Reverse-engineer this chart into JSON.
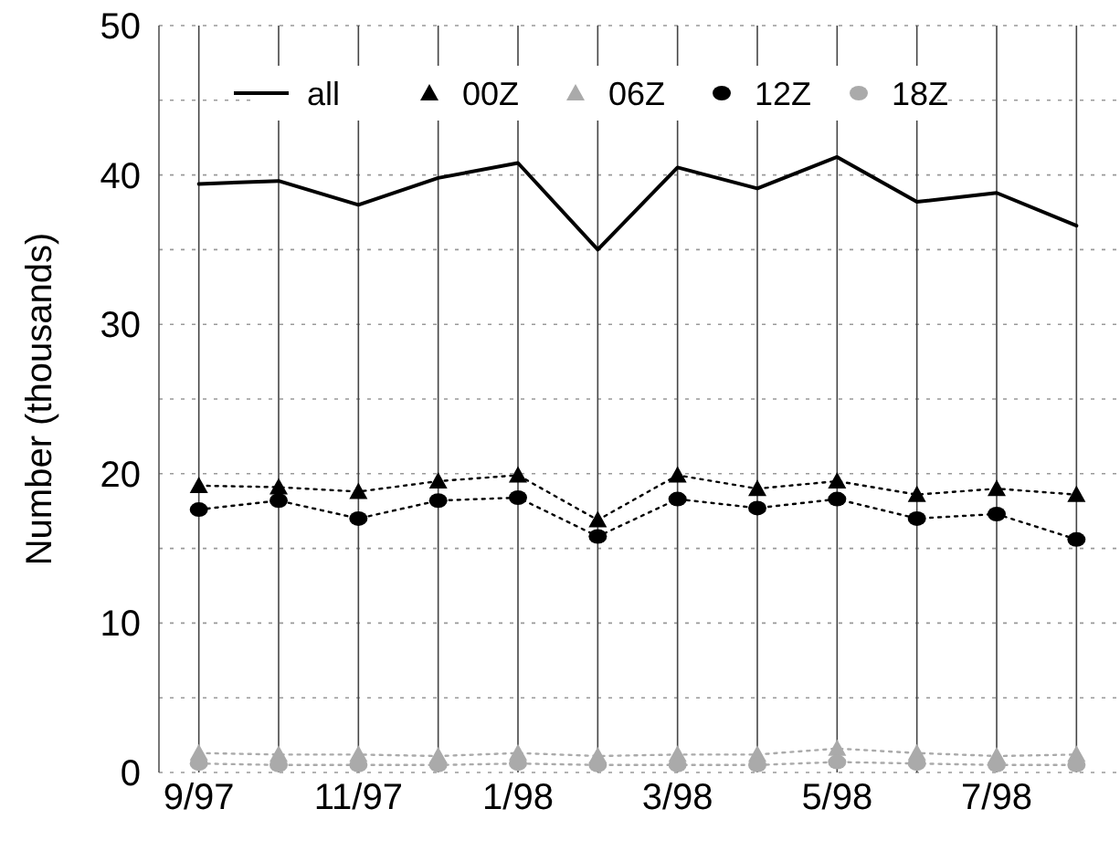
{
  "chart_data": {
    "type": "line",
    "ylabel": "Number (thousands)",
    "categories": [
      "9/97",
      null,
      "11/97",
      null,
      "1/98",
      null,
      "3/98",
      null,
      "5/98",
      null,
      "7/98",
      null
    ],
    "ylim": [
      0,
      50
    ],
    "yticks": [
      0,
      {
        "value": 5,
        "label": null
      },
      10,
      {
        "value": 15,
        "label": null
      },
      20,
      {
        "value": 25,
        "label": null
      },
      30,
      {
        "value": 35,
        "label": null
      },
      40,
      {
        "value": 45,
        "label": null
      },
      50
    ],
    "grid": true,
    "legend": "top",
    "series": [
      {
        "name": "all",
        "color": "#000000",
        "marker": "none",
        "line_style": "solid",
        "values": [
          39.4,
          39.6,
          38.0,
          39.8,
          40.8,
          35.0,
          40.5,
          39.1,
          41.2,
          38.2,
          38.8,
          36.6
        ]
      },
      {
        "name": "00Z",
        "color": "#000000",
        "marker": "triangle",
        "line_style": "dotted",
        "values": [
          19.2,
          19.1,
          18.8,
          19.5,
          19.9,
          16.9,
          19.9,
          19.0,
          19.5,
          18.6,
          19.0,
          18.6
        ]
      },
      {
        "name": "06Z",
        "color": "#aaaaaa",
        "marker": "triangle",
        "line_style": "dotted",
        "values": [
          1.3,
          1.2,
          1.2,
          1.1,
          1.3,
          1.1,
          1.2,
          1.2,
          1.6,
          1.3,
          1.1,
          1.2
        ]
      },
      {
        "name": "12Z",
        "color": "#000000",
        "marker": "circle",
        "line_style": "dotted",
        "values": [
          17.6,
          18.2,
          17.0,
          18.2,
          18.4,
          15.8,
          18.3,
          17.7,
          18.3,
          17.0,
          17.3,
          15.6
        ]
      },
      {
        "name": "18Z",
        "color": "#aaaaaa",
        "marker": "circle",
        "line_style": "dotted",
        "values": [
          0.6,
          0.5,
          0.5,
          0.5,
          0.6,
          0.5,
          0.5,
          0.5,
          0.7,
          0.6,
          0.5,
          0.5
        ]
      }
    ]
  }
}
